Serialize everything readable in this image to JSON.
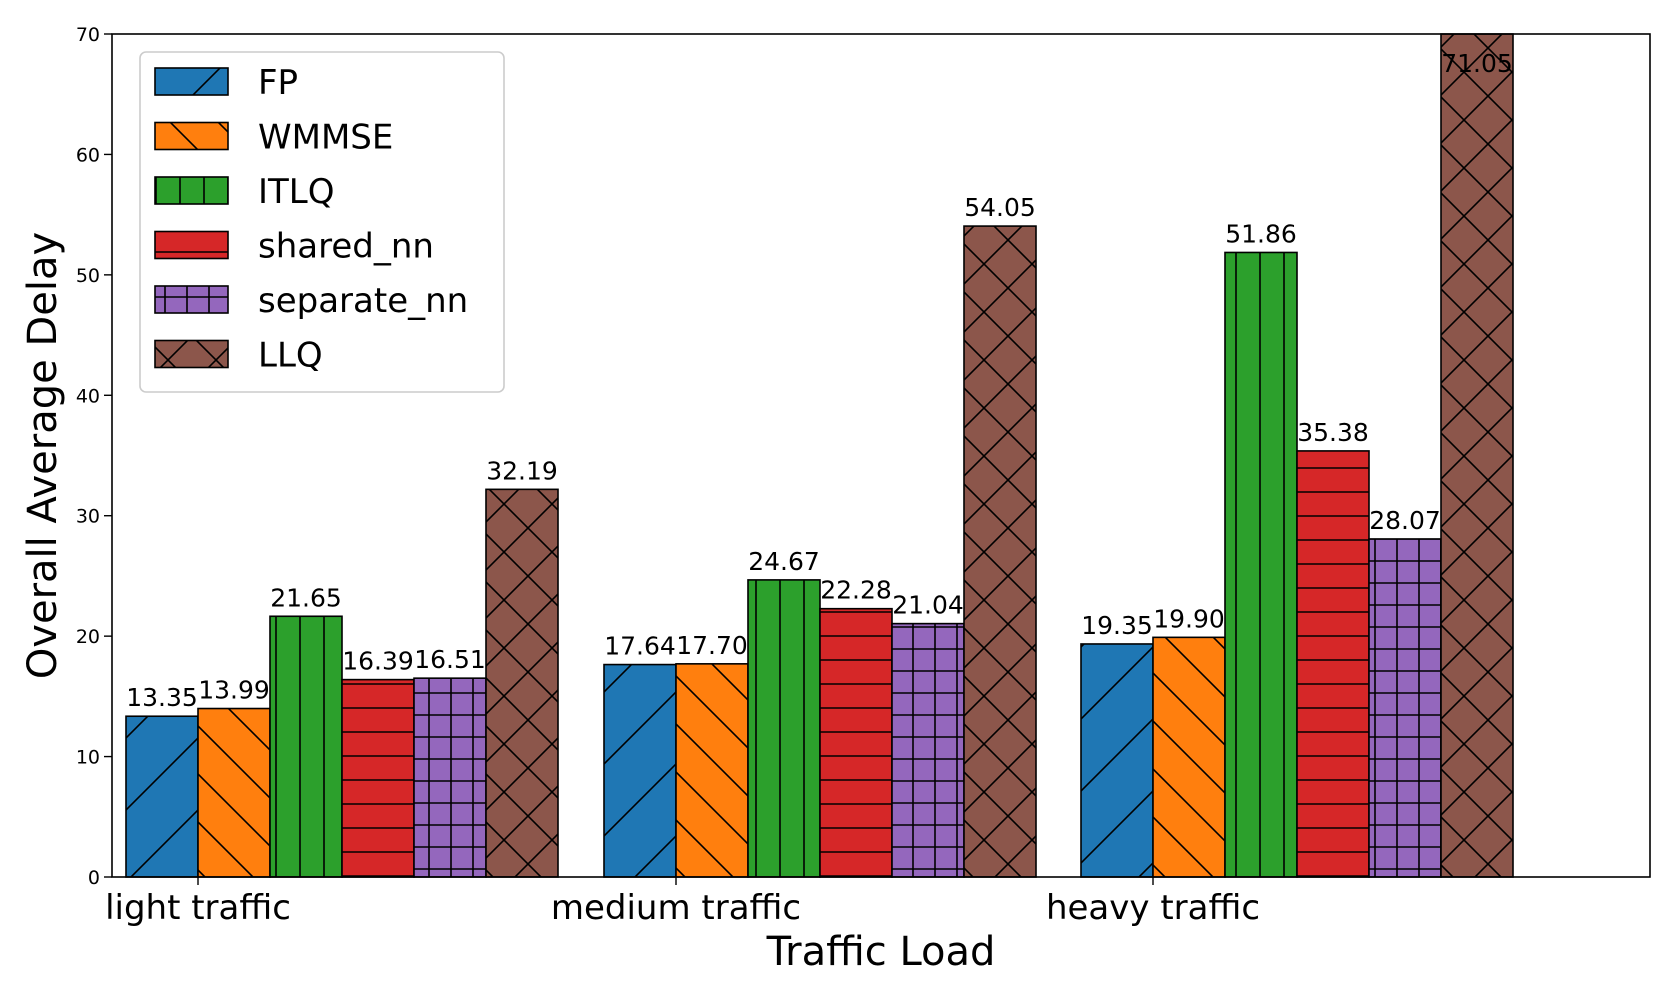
{
  "chart_data": {
    "type": "bar",
    "title": "",
    "xlabel": "Traffic Load",
    "ylabel": "Overall Average Delay",
    "ylim": [
      0,
      70
    ],
    "yticks": [
      0,
      10,
      20,
      30,
      40,
      50,
      60,
      70
    ],
    "grid": false,
    "legend_position": "top-left",
    "categories": [
      "light traffic",
      "medium traffic",
      "heavy traffic"
    ],
    "series": [
      {
        "name": "FP",
        "color": "#1f77b4",
        "hatch": "diagonal-up",
        "values": [
          13.35,
          17.64,
          19.35
        ],
        "labels": [
          "13.35",
          "17.64",
          "19.35"
        ]
      },
      {
        "name": "WMMSE",
        "color": "#ff7f0e",
        "hatch": "diagonal-down",
        "values": [
          13.99,
          17.7,
          19.9
        ],
        "labels": [
          "13.99",
          "17.70",
          "19.90"
        ]
      },
      {
        "name": "ITLQ",
        "color": "#2ca02c",
        "hatch": "vertical",
        "values": [
          21.65,
          24.67,
          51.86
        ],
        "labels": [
          "21.65",
          "24.67",
          "51.86"
        ]
      },
      {
        "name": "shared_nn",
        "color": "#d62728",
        "hatch": "horizontal",
        "values": [
          16.39,
          22.28,
          35.38
        ],
        "labels": [
          "16.39",
          "22.28",
          "35.38"
        ]
      },
      {
        "name": "separate_nn",
        "color": "#9467bd",
        "hatch": "grid",
        "values": [
          16.51,
          21.04,
          28.07
        ],
        "labels": [
          "16.51",
          "21.04",
          "28.07"
        ]
      },
      {
        "name": "LLQ",
        "color": "#8c564b",
        "hatch": "cross",
        "values": [
          32.19,
          54.05,
          71.05
        ],
        "labels": [
          "32.19",
          "54.05",
          "71.05"
        ]
      }
    ]
  }
}
